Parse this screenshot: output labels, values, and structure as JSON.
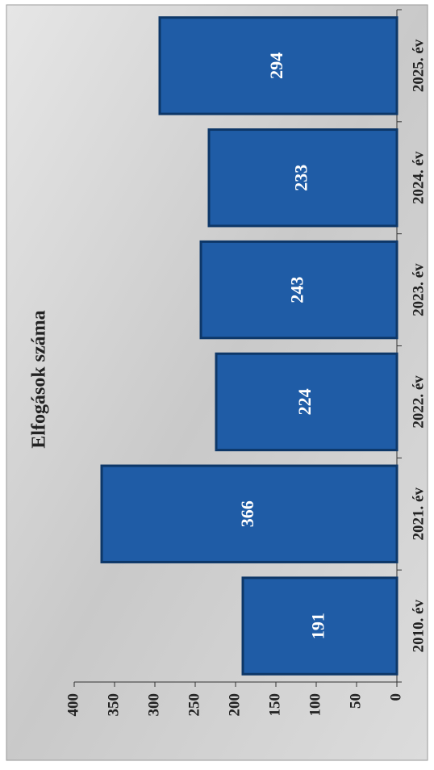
{
  "chart_data": {
    "type": "bar",
    "title": "Elfogások száma",
    "categories": [
      "2010. év",
      "2021. év",
      "2022. év",
      "2023. év",
      "2024. év",
      "2025. év"
    ],
    "values": [
      191,
      366,
      224,
      243,
      233,
      294
    ],
    "color": "#1f5ca6",
    "ylim": [
      0,
      400
    ],
    "yticks": [
      0,
      50,
      100,
      150,
      200,
      250,
      300,
      350,
      400
    ]
  }
}
